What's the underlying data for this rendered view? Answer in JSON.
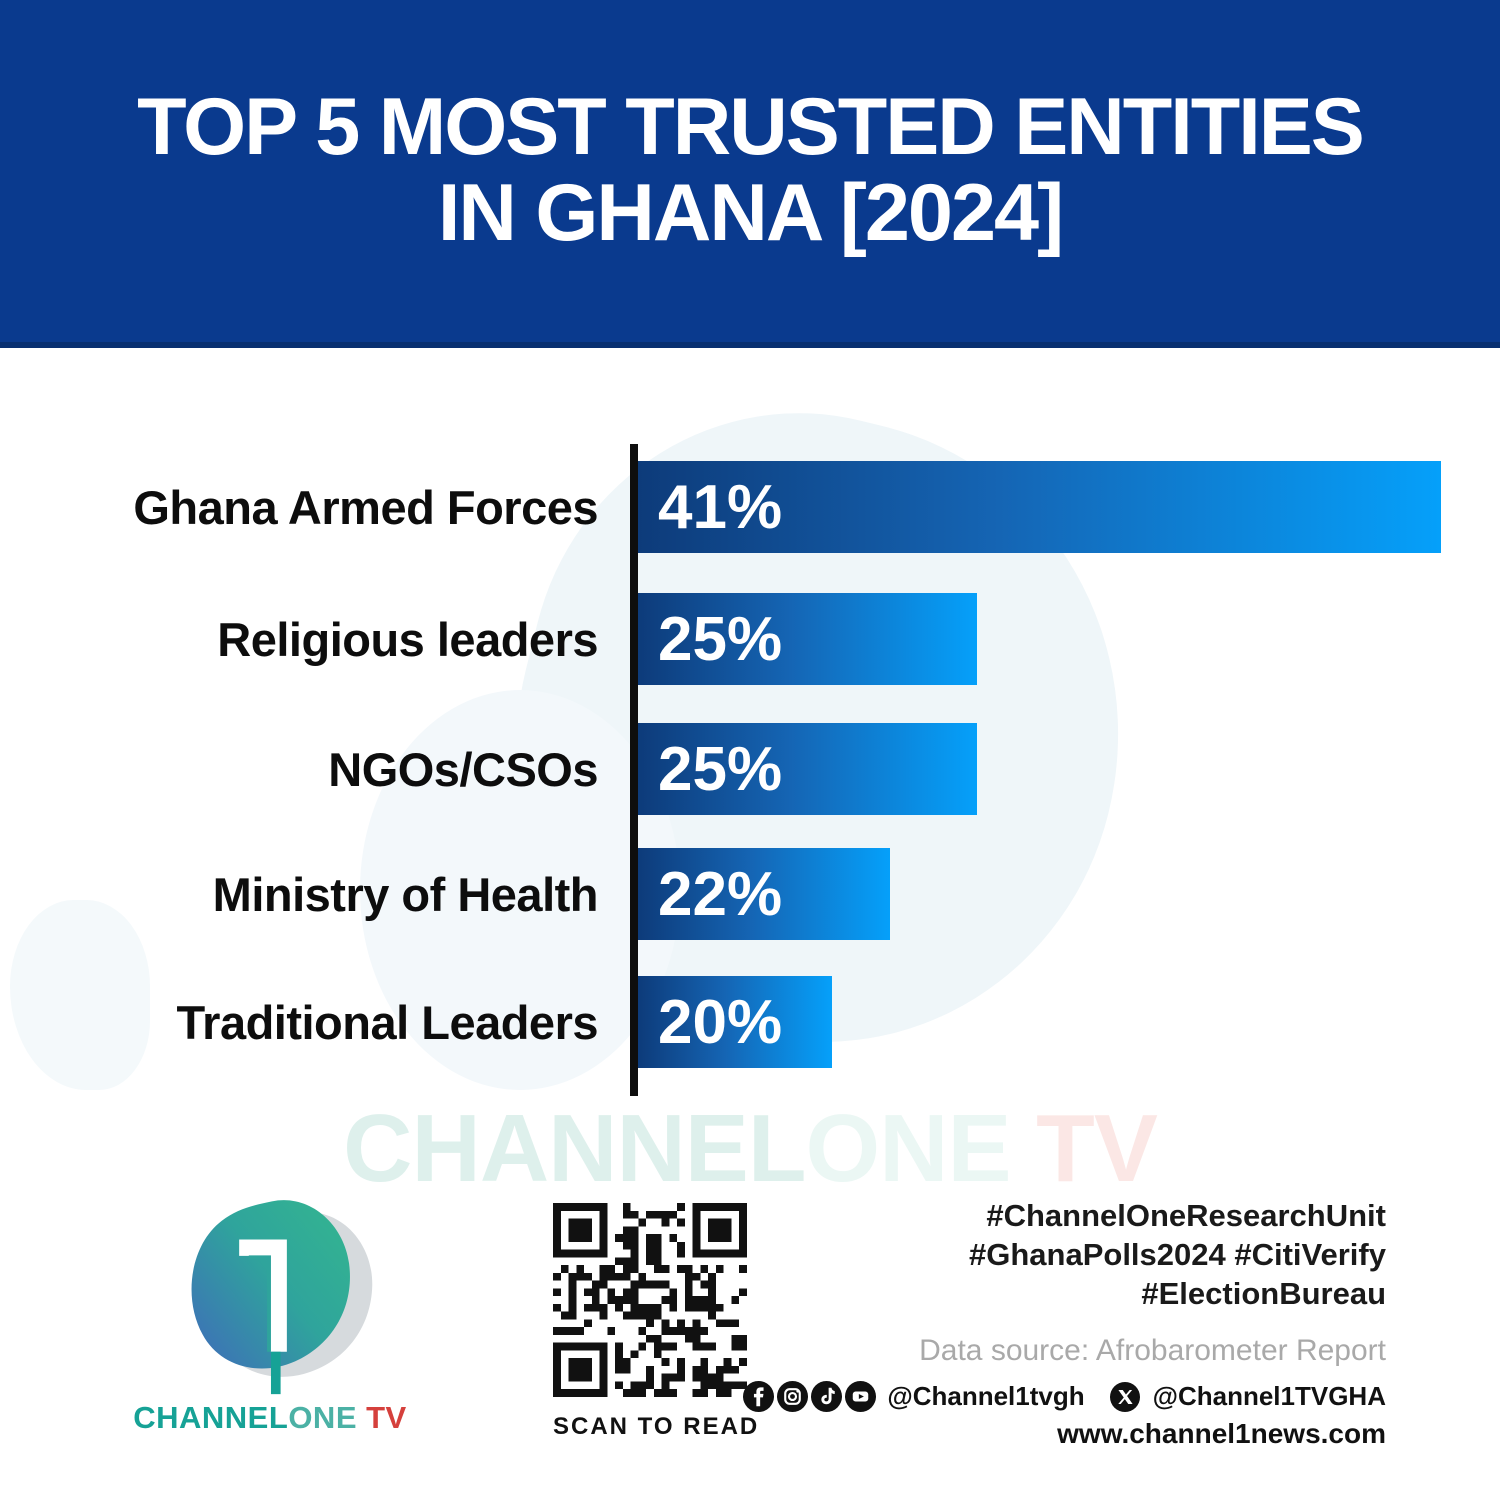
{
  "header": {
    "title_line1": "TOP 5 MOST TRUSTED ENTITIES",
    "title_line2": "IN GHANA [2024]"
  },
  "chart_data": {
    "type": "bar",
    "orientation": "horizontal",
    "title": "TOP 5 MOST TRUSTED ENTITIES IN GHANA [2024]",
    "categories": [
      "Ghana Armed Forces",
      "Religious leaders",
      "NGOs/CSOs",
      "Ministry of Health",
      "Traditional Leaders"
    ],
    "values": [
      41,
      25,
      25,
      22,
      20
    ],
    "value_labels": [
      "41%",
      "25%",
      "25%",
      "22%",
      "20%"
    ],
    "xlabel": "",
    "ylabel": "",
    "xlim": [
      13.3,
      41
    ],
    "grid": false,
    "legend": false,
    "bar_gradient_start": "#0d3b7a",
    "bar_gradient_end": "#05a0fa",
    "axis_color": "#0e0e0e"
  },
  "watermark": {
    "part1": "CHANNEL",
    "part2": "ONE",
    "part3": " TV"
  },
  "footer": {
    "logo": {
      "numeral": "1",
      "wordmark_part1": "CHANNEL",
      "wordmark_part2": "ONE",
      "wordmark_part3": " TV"
    },
    "qr_caption": "SCAN TO READ",
    "hashtags": [
      "#ChannelOneResearchUnit",
      "#GhanaPolls2024 #CitiVerify",
      "#ElectionBureau"
    ],
    "data_source": "Data source: Afrobarometer Report",
    "social": {
      "icons": [
        "facebook-icon",
        "instagram-icon",
        "tiktok-icon",
        "youtube-icon",
        "x-icon"
      ],
      "handle1": "@Channel1tvgh",
      "handle2": "@Channel1TVGHA",
      "website": "www.channel1news.com"
    }
  },
  "colors": {
    "banner_blue": "#0a3a8e",
    "accent_teal": "#16a296",
    "accent_red": "#d5403c",
    "bar_dark": "#0d3b7a",
    "bar_bright": "#05a0fa"
  }
}
